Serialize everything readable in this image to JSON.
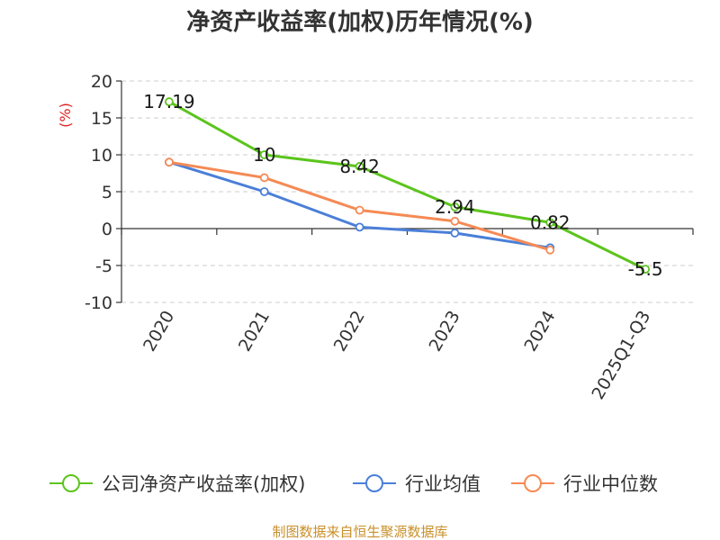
{
  "chart_data": {
    "type": "line",
    "title": "净资产收益率(加权)历年情况(%)",
    "ylabel": "(%)",
    "xlabel": "",
    "categories": [
      "2020",
      "2021",
      "2022",
      "2023",
      "2024",
      "2025Q1-Q3"
    ],
    "ylim": [
      -10,
      20
    ],
    "yticks": [
      20,
      15,
      10,
      5,
      0,
      -5,
      -10
    ],
    "grid": true,
    "legend_position": "bottom",
    "series": [
      {
        "name": "公司净资产收益率(加权)",
        "color": "#5cc41c",
        "values": [
          17.19,
          10,
          8.42,
          2.94,
          0.82,
          -5.5
        ],
        "labels": [
          "17.19",
          "10",
          "8.42",
          "2.94",
          "0.82",
          "-5.5"
        ]
      },
      {
        "name": "行业均值",
        "color": "#4a7fd8",
        "values": [
          9.0,
          5.0,
          0.2,
          -0.6,
          -2.6,
          null
        ]
      },
      {
        "name": "行业中位数",
        "color": "#f58a55",
        "values": [
          9.0,
          6.9,
          2.5,
          1.0,
          -2.9,
          null
        ]
      }
    ]
  },
  "source": "制图数据来自恒生聚源数据库"
}
